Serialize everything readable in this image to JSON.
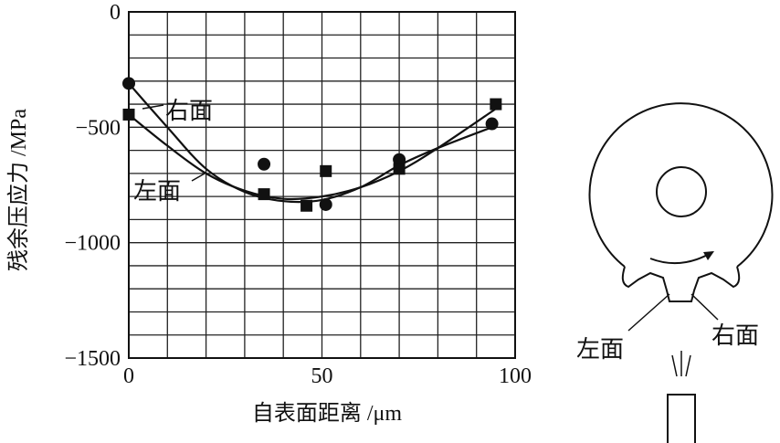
{
  "chart_data": {
    "type": "scatter",
    "title": "",
    "xlabel": "自表面距离 /μm",
    "ylabel": "残余压应力 /MPa",
    "xlim": [
      0,
      100
    ],
    "ylim": [
      -1500,
      0
    ],
    "x_ticks": [
      "0",
      "50",
      "100"
    ],
    "y_ticks": [
      "0",
      "−500",
      "−1000",
      "−1500"
    ],
    "grid": true,
    "series": [
      {
        "name": "右面",
        "marker": "circle",
        "points": [
          [
            0,
            -310
          ],
          [
            35,
            -660
          ],
          [
            51,
            -835
          ],
          [
            70,
            -640
          ],
          [
            94,
            -485
          ]
        ],
        "curve": [
          [
            0,
            -310
          ],
          [
            10,
            -500
          ],
          [
            20,
            -680
          ],
          [
            30,
            -780
          ],
          [
            40,
            -820
          ],
          [
            50,
            -815
          ],
          [
            60,
            -760
          ],
          [
            70,
            -665
          ],
          [
            80,
            -590
          ],
          [
            94,
            -500
          ]
        ]
      },
      {
        "name": "左面",
        "marker": "square",
        "points": [
          [
            0,
            -445
          ],
          [
            35,
            -790
          ],
          [
            46,
            -840
          ],
          [
            51,
            -690
          ],
          [
            70,
            -680
          ],
          [
            95,
            -400
          ]
        ],
        "curve": [
          [
            0,
            -445
          ],
          [
            10,
            -580
          ],
          [
            20,
            -700
          ],
          [
            30,
            -775
          ],
          [
            40,
            -810
          ],
          [
            50,
            -800
          ],
          [
            60,
            -760
          ],
          [
            70,
            -690
          ],
          [
            80,
            -590
          ],
          [
            95,
            -420
          ]
        ]
      }
    ],
    "annotations": [
      "右面",
      "左面"
    ]
  },
  "diagram": {
    "left_label": "左面",
    "right_label": "右面"
  }
}
